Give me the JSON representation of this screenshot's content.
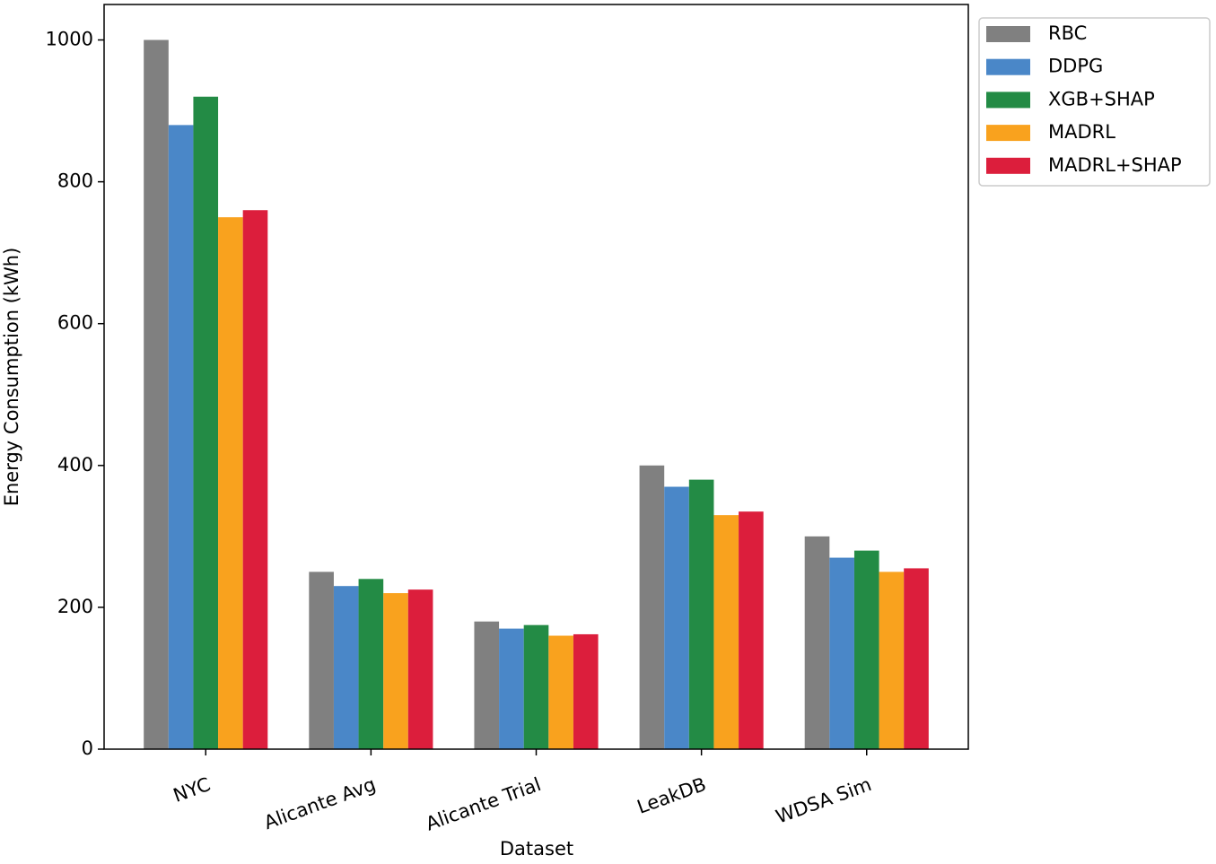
{
  "chart_data": {
    "type": "bar",
    "x_label": "Dataset",
    "y_label": "Energy Consumption (kWh)",
    "categories": [
      "NYC",
      "Alicante Avg",
      "Alicante Trial",
      "LeakDB",
      "WDSA Sim"
    ],
    "series": [
      {
        "name": "RBC",
        "color": "#808080",
        "values": [
          1000,
          250,
          180,
          400,
          300
        ]
      },
      {
        "name": "DDPG",
        "color": "#4a87c8",
        "values": [
          880,
          230,
          170,
          370,
          270
        ]
      },
      {
        "name": "XGB+SHAP",
        "color": "#238b45",
        "values": [
          920,
          240,
          175,
          380,
          280
        ]
      },
      {
        "name": "MADRL",
        "color": "#f9a21e",
        "values": [
          750,
          220,
          160,
          330,
          250
        ]
      },
      {
        "name": "MADRL+SHAP",
        "color": "#dc1e3c",
        "values": [
          760,
          225,
          162,
          335,
          255
        ]
      }
    ],
    "ylim": [
      0,
      1050
    ],
    "yticks": [
      0,
      200,
      400,
      600,
      800,
      1000
    ]
  }
}
